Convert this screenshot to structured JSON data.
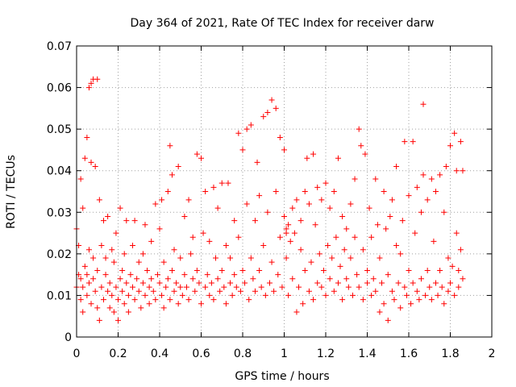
{
  "chart_data": {
    "type": "scatter",
    "title": "Day 364 of 2021, Rate Of TEC Index for receiver darw",
    "xlabel": "GPS time / hours",
    "ylabel": "ROTI / TECUs",
    "xlim": [
      0,
      2
    ],
    "ylim": [
      0,
      0.07
    ],
    "xticks": [
      0,
      0.2,
      0.4,
      0.6,
      0.8,
      1,
      1.2,
      1.4,
      1.6,
      1.8,
      2
    ],
    "xtick_labels": [
      "0",
      "0.2",
      "0.4",
      "0.6",
      "0.8",
      "1",
      "1.2",
      "1.4",
      "1.6",
      "1.8",
      "2"
    ],
    "yticks": [
      0,
      0.01,
      0.02,
      0.03,
      0.04,
      0.05,
      0.06,
      0.07
    ],
    "ytick_labels": [
      "0",
      "0.01",
      "0.02",
      "0.03",
      "0.04",
      "0.05",
      "0.06",
      "0.07"
    ],
    "grid": true,
    "marker": "+",
    "color": "#ff0000",
    "series": [
      {
        "name": "ROTI",
        "points": [
          [
            0.0,
            0.012
          ],
          [
            0.0,
            0.026
          ],
          [
            0.01,
            0.015
          ],
          [
            0.01,
            0.022
          ],
          [
            0.02,
            0.009
          ],
          [
            0.02,
            0.014
          ],
          [
            0.02,
            0.038
          ],
          [
            0.03,
            0.006
          ],
          [
            0.03,
            0.012
          ],
          [
            0.03,
            0.031
          ],
          [
            0.04,
            0.017
          ],
          [
            0.04,
            0.043
          ],
          [
            0.05,
            0.01
          ],
          [
            0.05,
            0.015
          ],
          [
            0.05,
            0.048
          ],
          [
            0.06,
            0.013
          ],
          [
            0.06,
            0.06
          ],
          [
            0.06,
            0.021
          ],
          [
            0.07,
            0.008
          ],
          [
            0.07,
            0.061
          ],
          [
            0.07,
            0.042
          ],
          [
            0.08,
            0.014
          ],
          [
            0.08,
            0.062
          ],
          [
            0.08,
            0.019
          ],
          [
            0.09,
            0.011
          ],
          [
            0.09,
            0.041
          ],
          [
            0.1,
            0.007
          ],
          [
            0.1,
            0.016
          ],
          [
            0.1,
            0.062
          ],
          [
            0.11,
            0.004
          ],
          [
            0.11,
            0.033
          ],
          [
            0.12,
            0.012
          ],
          [
            0.12,
            0.022
          ],
          [
            0.13,
            0.009
          ],
          [
            0.13,
            0.028
          ],
          [
            0.14,
            0.015
          ],
          [
            0.14,
            0.019
          ],
          [
            0.15,
            0.011
          ],
          [
            0.15,
            0.029
          ],
          [
            0.16,
            0.007
          ],
          [
            0.16,
            0.013
          ],
          [
            0.17,
            0.021
          ],
          [
            0.17,
            0.01
          ],
          [
            0.18,
            0.018
          ],
          [
            0.18,
            0.006
          ],
          [
            0.19,
            0.012
          ],
          [
            0.19,
            0.025
          ],
          [
            0.2,
            0.009
          ],
          [
            0.2,
            0.004
          ],
          [
            0.21,
            0.014
          ],
          [
            0.21,
            0.031
          ],
          [
            0.22,
            0.011
          ],
          [
            0.22,
            0.016
          ],
          [
            0.23,
            0.008
          ],
          [
            0.23,
            0.02
          ],
          [
            0.24,
            0.013
          ],
          [
            0.24,
            0.028
          ],
          [
            0.25,
            0.01
          ],
          [
            0.25,
            0.006
          ],
          [
            0.26,
            0.015
          ],
          [
            0.27,
            0.012
          ],
          [
            0.27,
            0.022
          ],
          [
            0.28,
            0.009
          ],
          [
            0.28,
            0.028
          ],
          [
            0.29,
            0.014
          ],
          [
            0.3,
            0.011
          ],
          [
            0.3,
            0.018
          ],
          [
            0.31,
            0.007
          ],
          [
            0.32,
            0.013
          ],
          [
            0.32,
            0.02
          ],
          [
            0.33,
            0.01
          ],
          [
            0.33,
            0.027
          ],
          [
            0.34,
            0.016
          ],
          [
            0.35,
            0.012
          ],
          [
            0.35,
            0.008
          ],
          [
            0.36,
            0.023
          ],
          [
            0.36,
            0.014
          ],
          [
            0.37,
            0.011
          ],
          [
            0.38,
            0.032
          ],
          [
            0.38,
            0.009
          ],
          [
            0.39,
            0.015
          ],
          [
            0.4,
            0.013
          ],
          [
            0.4,
            0.026
          ],
          [
            0.41,
            0.01
          ],
          [
            0.41,
            0.033
          ],
          [
            0.42,
            0.007
          ],
          [
            0.42,
            0.018
          ],
          [
            0.43,
            0.012
          ],
          [
            0.44,
            0.035
          ],
          [
            0.44,
            0.014
          ],
          [
            0.45,
            0.009
          ],
          [
            0.45,
            0.046
          ],
          [
            0.46,
            0.016
          ],
          [
            0.46,
            0.039
          ],
          [
            0.47,
            0.011
          ],
          [
            0.47,
            0.021
          ],
          [
            0.48,
            0.013
          ],
          [
            0.49,
            0.041
          ],
          [
            0.49,
            0.008
          ],
          [
            0.5,
            0.012
          ],
          [
            0.5,
            0.019
          ],
          [
            0.51,
            0.01
          ],
          [
            0.52,
            0.029
          ],
          [
            0.52,
            0.015
          ],
          [
            0.53,
            0.012
          ],
          [
            0.54,
            0.033
          ],
          [
            0.54,
            0.009
          ],
          [
            0.55,
            0.02
          ],
          [
            0.56,
            0.014
          ],
          [
            0.56,
            0.024
          ],
          [
            0.57,
            0.011
          ],
          [
            0.58,
            0.044
          ],
          [
            0.58,
            0.016
          ],
          [
            0.59,
            0.013
          ],
          [
            0.6,
            0.043
          ],
          [
            0.6,
            0.008
          ],
          [
            0.61,
            0.025
          ],
          [
            0.62,
            0.012
          ],
          [
            0.62,
            0.035
          ],
          [
            0.63,
            0.015
          ],
          [
            0.64,
            0.01
          ],
          [
            0.64,
            0.023
          ],
          [
            0.65,
            0.013
          ],
          [
            0.66,
            0.036
          ],
          [
            0.66,
            0.009
          ],
          [
            0.67,
            0.019
          ],
          [
            0.68,
            0.014
          ],
          [
            0.68,
            0.031
          ],
          [
            0.69,
            0.011
          ],
          [
            0.7,
            0.037
          ],
          [
            0.7,
            0.016
          ],
          [
            0.71,
            0.012
          ],
          [
            0.72,
            0.022
          ],
          [
            0.72,
            0.008
          ],
          [
            0.73,
            0.037
          ],
          [
            0.74,
            0.013
          ],
          [
            0.74,
            0.019
          ],
          [
            0.75,
            0.01
          ],
          [
            0.76,
            0.028
          ],
          [
            0.76,
            0.015
          ],
          [
            0.77,
            0.012
          ],
          [
            0.78,
            0.049
          ],
          [
            0.78,
            0.024
          ],
          [
            0.79,
            0.011
          ],
          [
            0.8,
            0.045
          ],
          [
            0.8,
            0.016
          ],
          [
            0.81,
            0.013
          ],
          [
            0.82,
            0.05
          ],
          [
            0.82,
            0.032
          ],
          [
            0.83,
            0.009
          ],
          [
            0.84,
            0.051
          ],
          [
            0.84,
            0.019
          ],
          [
            0.85,
            0.014
          ],
          [
            0.86,
            0.028
          ],
          [
            0.86,
            0.011
          ],
          [
            0.87,
            0.042
          ],
          [
            0.88,
            0.016
          ],
          [
            0.88,
            0.034
          ],
          [
            0.89,
            0.012
          ],
          [
            0.9,
            0.053
          ],
          [
            0.9,
            0.022
          ],
          [
            0.91,
            0.01
          ],
          [
            0.92,
            0.054
          ],
          [
            0.92,
            0.03
          ],
          [
            0.93,
            0.013
          ],
          [
            0.94,
            0.057
          ],
          [
            0.94,
            0.018
          ],
          [
            0.95,
            0.011
          ],
          [
            0.96,
            0.055
          ],
          [
            0.96,
            0.035
          ],
          [
            0.97,
            0.015
          ],
          [
            0.98,
            0.048
          ],
          [
            0.98,
            0.024
          ],
          [
            0.99,
            0.012
          ],
          [
            1.0,
            0.045
          ],
          [
            1.0,
            0.029
          ],
          [
            1.01,
            0.019
          ],
          [
            1.01,
            0.026
          ],
          [
            1.02,
            0.027
          ],
          [
            1.02,
            0.01
          ],
          [
            1.03,
            0.023
          ],
          [
            1.04,
            0.031
          ],
          [
            1.04,
            0.014
          ],
          [
            1.05,
            0.025
          ],
          [
            1.06,
            0.006
          ],
          [
            1.06,
            0.033
          ],
          [
            1.07,
            0.012
          ],
          [
            1.08,
            0.021
          ],
          [
            1.08,
            0.028
          ],
          [
            1.09,
            0.008
          ],
          [
            1.1,
            0.035
          ],
          [
            1.1,
            0.016
          ],
          [
            1.11,
            0.043
          ],
          [
            1.12,
            0.011
          ],
          [
            1.12,
            0.032
          ],
          [
            1.13,
            0.018
          ],
          [
            1.14,
            0.044
          ],
          [
            1.14,
            0.009
          ],
          [
            1.15,
            0.027
          ],
          [
            1.16,
            0.013
          ],
          [
            1.16,
            0.036
          ],
          [
            1.17,
            0.02
          ],
          [
            1.18,
            0.012
          ],
          [
            1.18,
            0.033
          ],
          [
            1.19,
            0.016
          ],
          [
            1.2,
            0.037
          ],
          [
            1.2,
            0.01
          ],
          [
            1.21,
            0.022
          ],
          [
            1.22,
            0.014
          ],
          [
            1.22,
            0.031
          ],
          [
            1.23,
            0.019
          ],
          [
            1.24,
            0.011
          ],
          [
            1.24,
            0.035
          ],
          [
            1.25,
            0.024
          ],
          [
            1.26,
            0.013
          ],
          [
            1.26,
            0.043
          ],
          [
            1.27,
            0.017
          ],
          [
            1.28,
            0.009
          ],
          [
            1.28,
            0.029
          ],
          [
            1.29,
            0.021
          ],
          [
            1.3,
            0.014
          ],
          [
            1.3,
            0.026
          ],
          [
            1.31,
            0.012
          ],
          [
            1.32,
            0.032
          ],
          [
            1.32,
            0.019
          ],
          [
            1.33,
            0.01
          ],
          [
            1.34,
            0.024
          ],
          [
            1.34,
            0.038
          ],
          [
            1.35,
            0.015
          ],
          [
            1.36,
            0.05
          ],
          [
            1.36,
            0.012
          ],
          [
            1.37,
            0.046
          ],
          [
            1.38,
            0.021
          ],
          [
            1.38,
            0.009
          ],
          [
            1.39,
            0.044
          ],
          [
            1.4,
            0.016
          ],
          [
            1.4,
            0.013
          ],
          [
            1.41,
            0.031
          ],
          [
            1.42,
            0.01
          ],
          [
            1.42,
            0.024
          ],
          [
            1.43,
            0.014
          ],
          [
            1.44,
            0.038
          ],
          [
            1.44,
            0.011
          ],
          [
            1.45,
            0.027
          ],
          [
            1.46,
            0.006
          ],
          [
            1.46,
            0.019
          ],
          [
            1.47,
            0.013
          ],
          [
            1.48,
            0.035
          ],
          [
            1.48,
            0.008
          ],
          [
            1.49,
            0.026
          ],
          [
            1.5,
            0.004
          ],
          [
            1.5,
            0.015
          ],
          [
            1.51,
            0.029
          ],
          [
            1.52,
            0.011
          ],
          [
            1.52,
            0.033
          ],
          [
            1.53,
            0.009
          ],
          [
            1.54,
            0.022
          ],
          [
            1.54,
            0.041
          ],
          [
            1.55,
            0.013
          ],
          [
            1.56,
            0.02
          ],
          [
            1.56,
            0.007
          ],
          [
            1.57,
            0.028
          ],
          [
            1.58,
            0.012
          ],
          [
            1.58,
            0.047
          ],
          [
            1.59,
            0.01
          ],
          [
            1.6,
            0.034
          ],
          [
            1.6,
            0.016
          ],
          [
            1.61,
            0.008
          ],
          [
            1.62,
            0.047
          ],
          [
            1.62,
            0.013
          ],
          [
            1.63,
            0.025
          ],
          [
            1.64,
            0.011
          ],
          [
            1.64,
            0.036
          ],
          [
            1.65,
            0.009
          ],
          [
            1.66,
            0.03
          ],
          [
            1.66,
            0.014
          ],
          [
            1.67,
            0.056
          ],
          [
            1.67,
            0.039
          ],
          [
            1.68,
            0.01
          ],
          [
            1.69,
            0.033
          ],
          [
            1.69,
            0.016
          ],
          [
            1.7,
            0.012
          ],
          [
            1.71,
            0.038
          ],
          [
            1.71,
            0.009
          ],
          [
            1.72,
            0.023
          ],
          [
            1.73,
            0.013
          ],
          [
            1.73,
            0.035
          ],
          [
            1.74,
            0.01
          ],
          [
            1.75,
            0.039
          ],
          [
            1.75,
            0.016
          ],
          [
            1.76,
            0.012
          ],
          [
            1.77,
            0.03
          ],
          [
            1.77,
            0.008
          ],
          [
            1.78,
            0.041
          ],
          [
            1.79,
            0.011
          ],
          [
            1.79,
            0.019
          ],
          [
            1.8,
            0.046
          ],
          [
            1.8,
            0.013
          ],
          [
            1.81,
            0.017
          ],
          [
            1.82,
            0.049
          ],
          [
            1.82,
            0.01
          ],
          [
            1.83,
            0.025
          ],
          [
            1.83,
            0.04
          ],
          [
            1.84,
            0.016
          ],
          [
            1.84,
            0.012
          ],
          [
            1.85,
            0.047
          ],
          [
            1.85,
            0.021
          ],
          [
            1.86,
            0.04
          ],
          [
            1.86,
            0.014
          ],
          [
            1.01,
            0.025
          ]
        ]
      }
    ]
  }
}
